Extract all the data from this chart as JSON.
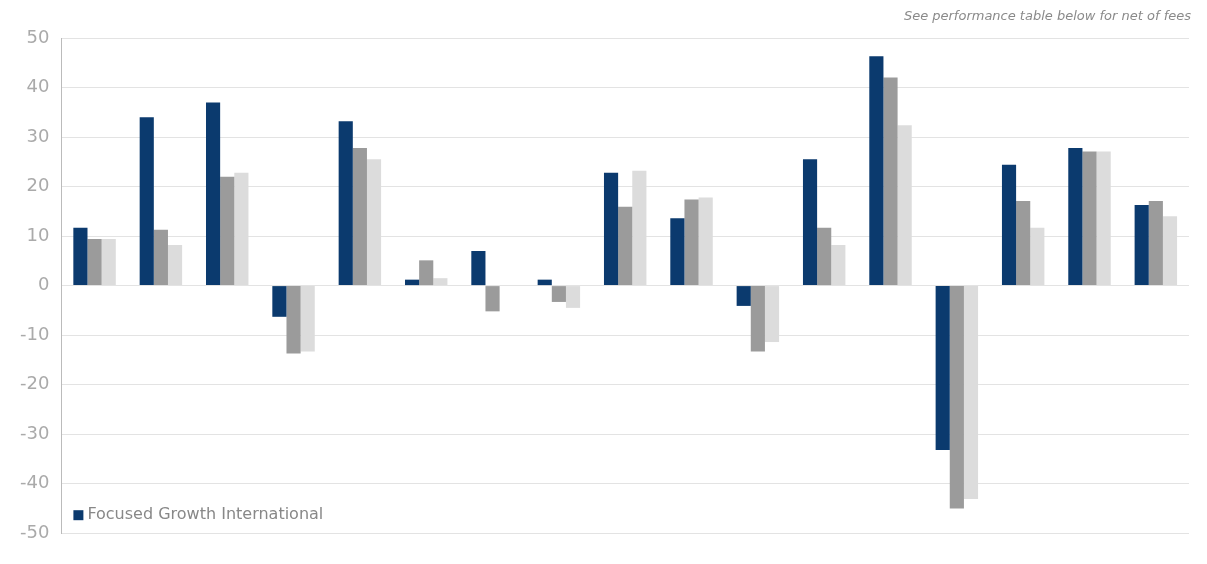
{
  "chart_data": {
    "type": "bar",
    "annotations": [
      "See performance table below for net of fees"
    ],
    "categories": [
      null,
      null,
      null,
      null,
      null,
      null,
      null,
      null,
      null,
      null,
      null,
      null,
      null,
      null,
      null,
      null,
      null
    ],
    "series": [
      {
        "name": "Focused Growth International",
        "color": "#0b3a6e",
        "values": [
          11.7,
          34,
          37,
          -6.3,
          33.2,
          1.2,
          7,
          1.2,
          22.8,
          13.6,
          -4.1,
          25.5,
          46.3,
          -33.2,
          24.4,
          27.8,
          16.3
        ]
      },
      {
        "color": "#9b9b9b",
        "values": [
          9.4,
          11.3,
          22,
          -13.7,
          27.8,
          5.1,
          -5.2,
          -3.3,
          15.9,
          17.4,
          -13.3,
          11.7,
          42,
          -45,
          17.1,
          27.1,
          17.1
        ]
      },
      {
        "color": "#dcdcdc",
        "values": [
          9.4,
          8.2,
          22.8,
          -13.3,
          25.5,
          1.5,
          0,
          -4.5,
          23.2,
          17.8,
          -11.4,
          8.2,
          32.4,
          -43.1,
          11.7,
          27.1,
          14
        ]
      }
    ],
    "ylim": [
      -50,
      50
    ],
    "yticks": [
      -50,
      -40,
      -30,
      -20,
      -10,
      0,
      10,
      20,
      30,
      40,
      50
    ],
    "grid": "y",
    "legend": "bottom left",
    "tick_labels": "y"
  }
}
